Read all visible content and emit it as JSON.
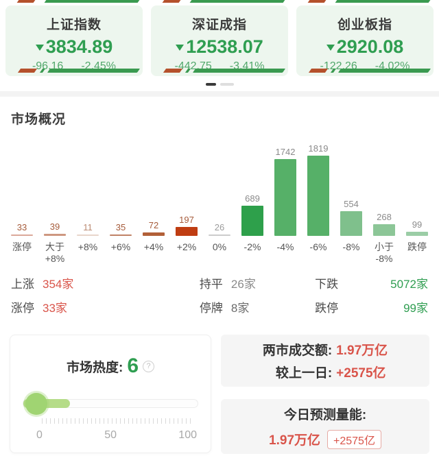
{
  "indices": [
    {
      "name": "上证指数",
      "value": "3834.89",
      "change": "-96.16",
      "pct": "-2.45%"
    },
    {
      "name": "深证成指",
      "value": "12538.07",
      "change": "-442.75",
      "pct": "-3.41%"
    },
    {
      "name": "创业板指",
      "value": "2920.08",
      "change": "-122.26",
      "pct": "-4.02%"
    }
  ],
  "pager": {
    "count": 2,
    "active_index": 0
  },
  "section_title": "市场概况",
  "chart_data": {
    "type": "bar",
    "title": "市场概况",
    "categories": [
      "涨停",
      "大于\n+8%",
      "+8%",
      "+6%",
      "+4%",
      "+2%",
      "0%",
      "-2%",
      "-4%",
      "-6%",
      "-8%",
      "小于\n-8%",
      "跌停"
    ],
    "values": [
      33,
      39,
      11,
      35,
      72,
      197,
      26,
      689,
      1742,
      1819,
      554,
      268,
      99
    ],
    "bar_colors": [
      "#dba899",
      "#cd9780",
      "#e8d5cb",
      "#c08165",
      "#b26038",
      "#bf3d12",
      "#cccccc",
      "#2ea04b",
      "#56b068",
      "#56b068",
      "#7fc08c",
      "#8cc697",
      "#9bcda6"
    ],
    "value_label_colors": [
      "#a55a39",
      "#a55a39",
      "#bb8a72",
      "#a55a39",
      "#a55a39",
      "#a55a39",
      "#9b9b9b",
      "#8a8a8a",
      "#8a8a8a",
      "#8a8a8a",
      "#8a8a8a",
      "#8a8a8a",
      "#8a8a8a"
    ],
    "ylim": [
      0,
      1819
    ],
    "grid": false,
    "value_labels_shown": true,
    "legend": "none"
  },
  "stats": {
    "rows": [
      [
        {
          "label": "上涨",
          "value": "354家",
          "color": "#d9544a"
        },
        {
          "label": "持平",
          "value": "26家",
          "color": "#8a8a8a"
        },
        {
          "label": "下跌",
          "value": "5072家",
          "color": "#2e9d50"
        }
      ],
      [
        {
          "label": "涨停",
          "value": "33家",
          "color": "#d9544a"
        },
        {
          "label": "停牌",
          "value": "8家",
          "color": "#6b6b6b"
        },
        {
          "label": "跌停",
          "value": "99家",
          "color": "#2e9d50"
        }
      ]
    ]
  },
  "heat": {
    "label": "市场热度:",
    "value": "6",
    "help_icon": "question-mark-icon",
    "scale_labels": [
      "0",
      "50",
      "100"
    ],
    "percent": 6
  },
  "turnover": {
    "rows": [
      {
        "label": "两市成交额:",
        "value": "1.97万亿"
      },
      {
        "label": "较上一日:",
        "value": "+2575亿"
      }
    ]
  },
  "forecast": {
    "label": "今日预测量能:",
    "value": "1.97万亿",
    "badge": "+2575亿"
  },
  "colors": {
    "up_red": "#d9544a",
    "down_green": "#2e9d50",
    "index_green": "#2f9e51",
    "card_bg_green": "#edf6ee",
    "gray_card_bg": "#f5f5f5"
  }
}
